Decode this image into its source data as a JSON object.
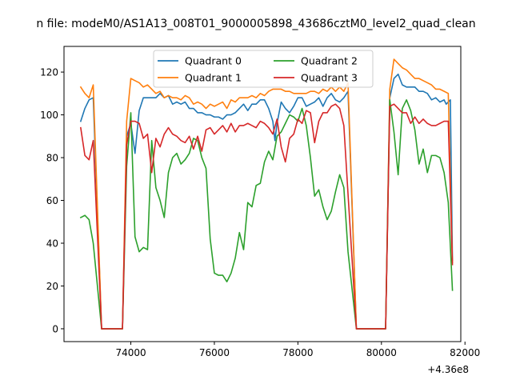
{
  "chart_data": {
    "type": "line",
    "title": "n file: modeM0/AS1A13_008T01_9000005898_43686cztM0_level2_quad_clean",
    "x_offset_label": "+4.36e8",
    "xlim": [
      72400,
      81900
    ],
    "ylim": [
      -6,
      132
    ],
    "x_ticks": [
      74000,
      76000,
      78000,
      80000,
      82000
    ],
    "x_tick_labels": [
      "74000",
      "76000",
      "78000",
      "80000",
      "82000"
    ],
    "y_ticks": [
      0,
      20,
      40,
      60,
      80,
      100,
      120
    ],
    "y_tick_labels": [
      "0",
      "20",
      "40",
      "60",
      "80",
      "100",
      "120"
    ],
    "legend_placement": "upper-center",
    "series": [
      {
        "name": "Quadrant 0",
        "color": "#1f77b4",
        "points": [
          [
            72800,
            97
          ],
          [
            72900,
            103
          ],
          [
            73000,
            107
          ],
          [
            73100,
            108
          ],
          [
            73300,
            0
          ],
          [
            73800,
            0
          ],
          [
            73900,
            90
          ],
          [
            74000,
            96
          ],
          [
            74100,
            82
          ],
          [
            74200,
            102
          ],
          [
            74300,
            108
          ],
          [
            74400,
            108
          ],
          [
            74500,
            108
          ],
          [
            74600,
            108
          ],
          [
            74700,
            110
          ],
          [
            74800,
            108
          ],
          [
            74900,
            109
          ],
          [
            75000,
            105
          ],
          [
            75100,
            106
          ],
          [
            75200,
            105
          ],
          [
            75300,
            106
          ],
          [
            75400,
            103
          ],
          [
            75500,
            103
          ],
          [
            75600,
            101
          ],
          [
            75700,
            101
          ],
          [
            75800,
            100
          ],
          [
            75900,
            100
          ],
          [
            76000,
            99
          ],
          [
            76100,
            99
          ],
          [
            76200,
            98
          ],
          [
            76300,
            100
          ],
          [
            76400,
            100
          ],
          [
            76500,
            101
          ],
          [
            76600,
            103
          ],
          [
            76700,
            105
          ],
          [
            76800,
            102
          ],
          [
            76900,
            105
          ],
          [
            77000,
            105
          ],
          [
            77100,
            107
          ],
          [
            77200,
            107
          ],
          [
            77300,
            103
          ],
          [
            77400,
            97
          ],
          [
            77450,
            88
          ],
          [
            77500,
            96
          ],
          [
            77600,
            106
          ],
          [
            77700,
            103
          ],
          [
            77800,
            101
          ],
          [
            77900,
            104
          ],
          [
            78000,
            108
          ],
          [
            78100,
            108
          ],
          [
            78200,
            104
          ],
          [
            78300,
            105
          ],
          [
            78400,
            106
          ],
          [
            78500,
            108
          ],
          [
            78600,
            104
          ],
          [
            78700,
            108
          ],
          [
            78800,
            110
          ],
          [
            78900,
            107
          ],
          [
            79000,
            106
          ],
          [
            79100,
            108
          ],
          [
            79200,
            111
          ],
          [
            79400,
            0
          ],
          [
            80100,
            0
          ],
          [
            80200,
            108
          ],
          [
            80300,
            117
          ],
          [
            80400,
            119
          ],
          [
            80500,
            114
          ],
          [
            80600,
            113
          ],
          [
            80700,
            113
          ],
          [
            80800,
            113
          ],
          [
            80900,
            111
          ],
          [
            81000,
            111
          ],
          [
            81100,
            110
          ],
          [
            81200,
            107
          ],
          [
            81300,
            108
          ],
          [
            81400,
            106
          ],
          [
            81500,
            107
          ],
          [
            81550,
            105
          ],
          [
            81600,
            106
          ],
          [
            81650,
            107
          ],
          [
            81700,
            32
          ]
        ]
      },
      {
        "name": "Quadrant 1",
        "color": "#ff7f0e",
        "points": [
          [
            72800,
            113
          ],
          [
            72900,
            110
          ],
          [
            73000,
            108
          ],
          [
            73100,
            114
          ],
          [
            73300,
            0
          ],
          [
            73800,
            0
          ],
          [
            73900,
            97
          ],
          [
            74000,
            117
          ],
          [
            74100,
            116
          ],
          [
            74200,
            115
          ],
          [
            74300,
            113
          ],
          [
            74400,
            114
          ],
          [
            74500,
            112
          ],
          [
            74600,
            110
          ],
          [
            74700,
            111
          ],
          [
            74800,
            108
          ],
          [
            74900,
            109
          ],
          [
            75000,
            108
          ],
          [
            75100,
            108
          ],
          [
            75200,
            107
          ],
          [
            75300,
            109
          ],
          [
            75400,
            108
          ],
          [
            75500,
            105
          ],
          [
            75600,
            106
          ],
          [
            75700,
            105
          ],
          [
            75800,
            103
          ],
          [
            75900,
            105
          ],
          [
            76000,
            104
          ],
          [
            76100,
            105
          ],
          [
            76200,
            106
          ],
          [
            76300,
            103
          ],
          [
            76400,
            107
          ],
          [
            76500,
            106
          ],
          [
            76600,
            108
          ],
          [
            76700,
            108
          ],
          [
            76800,
            108
          ],
          [
            76900,
            109
          ],
          [
            77000,
            108
          ],
          [
            77100,
            110
          ],
          [
            77200,
            109
          ],
          [
            77300,
            111
          ],
          [
            77400,
            112
          ],
          [
            77500,
            112
          ],
          [
            77600,
            112
          ],
          [
            77700,
            111
          ],
          [
            77800,
            111
          ],
          [
            77900,
            110
          ],
          [
            78000,
            110
          ],
          [
            78100,
            110
          ],
          [
            78200,
            110
          ],
          [
            78300,
            111
          ],
          [
            78400,
            111
          ],
          [
            78500,
            110
          ],
          [
            78600,
            112
          ],
          [
            78700,
            111
          ],
          [
            78800,
            113
          ],
          [
            78900,
            111
          ],
          [
            79000,
            113
          ],
          [
            79100,
            111
          ],
          [
            79200,
            115
          ],
          [
            79400,
            0
          ],
          [
            80100,
            0
          ],
          [
            80200,
            112
          ],
          [
            80300,
            126
          ],
          [
            80400,
            124
          ],
          [
            80500,
            122
          ],
          [
            80600,
            121
          ],
          [
            80700,
            119
          ],
          [
            80800,
            117
          ],
          [
            80900,
            117
          ],
          [
            81000,
            116
          ],
          [
            81100,
            115
          ],
          [
            81200,
            114
          ],
          [
            81300,
            112
          ],
          [
            81400,
            112
          ],
          [
            81500,
            111
          ],
          [
            81600,
            110
          ],
          [
            81700,
            31
          ]
        ]
      },
      {
        "name": "Quadrant 2",
        "color": "#2ca02c",
        "points": [
          [
            72800,
            52
          ],
          [
            72900,
            53
          ],
          [
            73000,
            51
          ],
          [
            73100,
            40
          ],
          [
            73200,
            20
          ],
          [
            73300,
            0
          ],
          [
            73800,
            0
          ],
          [
            73900,
            76
          ],
          [
            74000,
            101
          ],
          [
            74100,
            43
          ],
          [
            74200,
            36
          ],
          [
            74300,
            38
          ],
          [
            74400,
            37
          ],
          [
            74500,
            88
          ],
          [
            74600,
            66
          ],
          [
            74700,
            60
          ],
          [
            74800,
            52
          ],
          [
            74900,
            73
          ],
          [
            75000,
            80
          ],
          [
            75100,
            82
          ],
          [
            75200,
            77
          ],
          [
            75300,
            79
          ],
          [
            75400,
            82
          ],
          [
            75500,
            89
          ],
          [
            75600,
            88
          ],
          [
            75700,
            80
          ],
          [
            75800,
            75
          ],
          [
            75900,
            42
          ],
          [
            76000,
            26
          ],
          [
            76100,
            25
          ],
          [
            76200,
            25
          ],
          [
            76300,
            22
          ],
          [
            76400,
            26
          ],
          [
            76500,
            33
          ],
          [
            76600,
            45
          ],
          [
            76700,
            37
          ],
          [
            76800,
            59
          ],
          [
            76900,
            57
          ],
          [
            77000,
            67
          ],
          [
            77100,
            68
          ],
          [
            77200,
            78
          ],
          [
            77300,
            83
          ],
          [
            77400,
            79
          ],
          [
            77500,
            90
          ],
          [
            77600,
            92
          ],
          [
            77700,
            96
          ],
          [
            77800,
            100
          ],
          [
            77900,
            99
          ],
          [
            78000,
            97
          ],
          [
            78100,
            103
          ],
          [
            78200,
            95
          ],
          [
            78300,
            80
          ],
          [
            78400,
            62
          ],
          [
            78500,
            65
          ],
          [
            78600,
            57
          ],
          [
            78700,
            51
          ],
          [
            78800,
            55
          ],
          [
            78900,
            64
          ],
          [
            79000,
            72
          ],
          [
            79100,
            66
          ],
          [
            79200,
            36
          ],
          [
            79400,
            0
          ],
          [
            80100,
            0
          ],
          [
            80200,
            107
          ],
          [
            80300,
            92
          ],
          [
            80400,
            72
          ],
          [
            80500,
            103
          ],
          [
            80600,
            107
          ],
          [
            80700,
            102
          ],
          [
            80800,
            93
          ],
          [
            80900,
            77
          ],
          [
            81000,
            84
          ],
          [
            81100,
            73
          ],
          [
            81200,
            81
          ],
          [
            81300,
            81
          ],
          [
            81400,
            80
          ],
          [
            81500,
            73
          ],
          [
            81600,
            59
          ],
          [
            81700,
            18
          ]
        ]
      },
      {
        "name": "Quadrant 3",
        "color": "#d62728",
        "points": [
          [
            72800,
            94
          ],
          [
            72900,
            81
          ],
          [
            73000,
            79
          ],
          [
            73100,
            88
          ],
          [
            73300,
            0
          ],
          [
            73800,
            0
          ],
          [
            73900,
            86
          ],
          [
            74000,
            97
          ],
          [
            74100,
            97
          ],
          [
            74200,
            96
          ],
          [
            74300,
            89
          ],
          [
            74400,
            91
          ],
          [
            74500,
            73
          ],
          [
            74600,
            89
          ],
          [
            74700,
            85
          ],
          [
            74800,
            91
          ],
          [
            74900,
            94
          ],
          [
            75000,
            91
          ],
          [
            75100,
            90
          ],
          [
            75200,
            88
          ],
          [
            75300,
            87
          ],
          [
            75400,
            90
          ],
          [
            75500,
            84
          ],
          [
            75600,
            90
          ],
          [
            75700,
            83
          ],
          [
            75800,
            93
          ],
          [
            75900,
            94
          ],
          [
            76000,
            91
          ],
          [
            76100,
            93
          ],
          [
            76200,
            95
          ],
          [
            76300,
            92
          ],
          [
            76400,
            96
          ],
          [
            76500,
            92
          ],
          [
            76600,
            95
          ],
          [
            76700,
            95
          ],
          [
            76800,
            96
          ],
          [
            76900,
            95
          ],
          [
            77000,
            94
          ],
          [
            77100,
            97
          ],
          [
            77200,
            96
          ],
          [
            77300,
            94
          ],
          [
            77400,
            91
          ],
          [
            77500,
            98
          ],
          [
            77600,
            85
          ],
          [
            77700,
            78
          ],
          [
            77800,
            89
          ],
          [
            77900,
            91
          ],
          [
            78000,
            98
          ],
          [
            78100,
            96
          ],
          [
            78200,
            102
          ],
          [
            78300,
            101
          ],
          [
            78400,
            87
          ],
          [
            78500,
            97
          ],
          [
            78600,
            101
          ],
          [
            78700,
            101
          ],
          [
            78800,
            104
          ],
          [
            78900,
            105
          ],
          [
            79000,
            103
          ],
          [
            79100,
            95
          ],
          [
            79200,
            63
          ],
          [
            79400,
            0
          ],
          [
            80100,
            0
          ],
          [
            80200,
            104
          ],
          [
            80300,
            105
          ],
          [
            80400,
            103
          ],
          [
            80500,
            101
          ],
          [
            80600,
            101
          ],
          [
            80700,
            96
          ],
          [
            80800,
            99
          ],
          [
            80900,
            96
          ],
          [
            81000,
            98
          ],
          [
            81100,
            96
          ],
          [
            81200,
            95
          ],
          [
            81300,
            95
          ],
          [
            81400,
            96
          ],
          [
            81500,
            97
          ],
          [
            81600,
            97
          ],
          [
            81700,
            30
          ]
        ]
      }
    ]
  }
}
